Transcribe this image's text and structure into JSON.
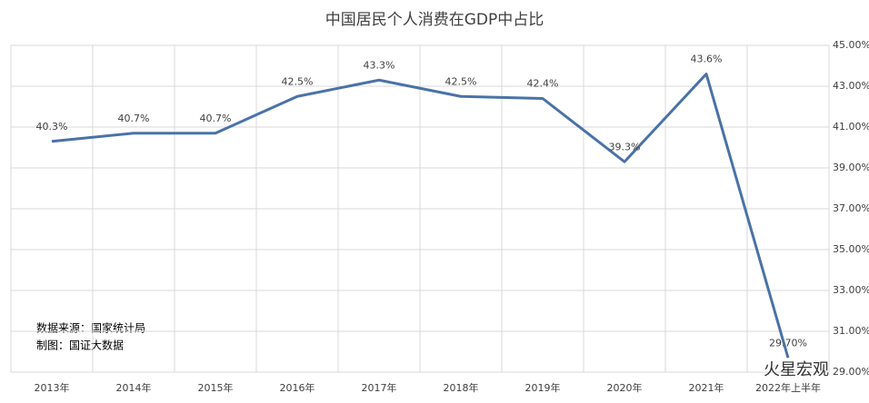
{
  "chart_data": {
    "type": "line",
    "title": "中国居民个人消费在GDP中占比",
    "categories": [
      "2013年",
      "2014年",
      "2015年",
      "2016年",
      "2017年",
      "2018年",
      "2019年",
      "2020年",
      "2021年",
      "2022年上半年"
    ],
    "series": [
      {
        "name": "中国居民个人消费在GDP中占比",
        "color": "#4a72a8",
        "values": [
          40.3,
          40.7,
          40.7,
          42.5,
          43.3,
          42.5,
          42.4,
          39.3,
          43.6,
          29.7
        ],
        "value_labels": [
          "40.3%",
          "40.7%",
          "40.7%",
          "42.5%",
          "43.3%",
          "42.5%",
          "42.4%",
          "39.3%",
          "43.6%",
          "29.70%"
        ]
      }
    ],
    "ylim": [
      29,
      45
    ],
    "yticks": [
      {
        "value": 29,
        "label": "29.00%"
      },
      {
        "value": 31,
        "label": "31.00%"
      },
      {
        "value": 33,
        "label": "33.00%"
      },
      {
        "value": 35,
        "label": "35.00%"
      },
      {
        "value": 37,
        "label": "37.00%"
      },
      {
        "value": 39,
        "label": "39.00%"
      },
      {
        "value": 41,
        "label": "41.00%"
      },
      {
        "value": 43,
        "label": "43.00%"
      },
      {
        "value": 45,
        "label": "45.00%"
      }
    ],
    "grid": true,
    "annotations": [
      "数据来源：国家统计局",
      "制图：国证大数据"
    ],
    "watermark": "火星宏观"
  }
}
